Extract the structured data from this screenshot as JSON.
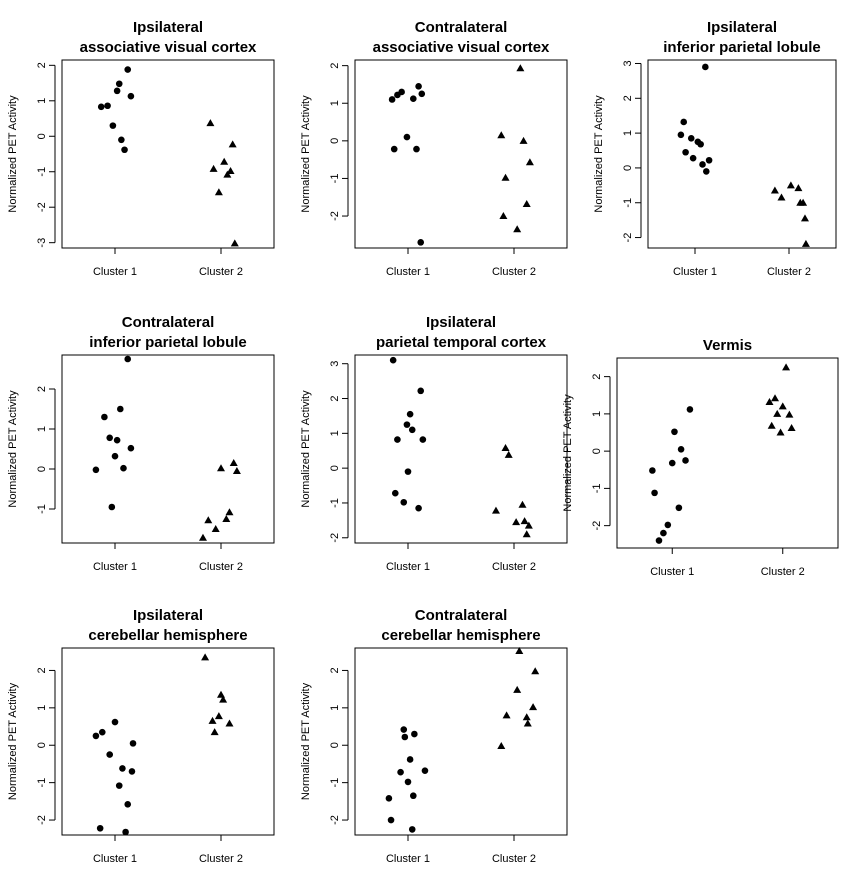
{
  "chart_data": [
    {
      "type": "scatter",
      "title": [
        "Ipsilateral",
        "associative visual cortex"
      ],
      "ylabel": "Normalized PET Activity",
      "categories": [
        "Cluster 1",
        "Cluster 2"
      ],
      "ylim": [
        -3.15,
        2.15
      ],
      "yticks": [
        -3,
        -2,
        -1,
        0,
        1,
        2
      ],
      "series": [
        {
          "name": "Cluster 1",
          "marker": "circle",
          "x": [
            0.87,
            0.93,
            0.98,
            1.02,
            1.04,
            1.06,
            1.09,
            1.12,
            1.15
          ],
          "y": [
            0.83,
            0.86,
            0.3,
            1.28,
            1.48,
            -0.1,
            -0.38,
            1.88,
            1.13
          ]
        },
        {
          "name": "Cluster 2",
          "marker": "triangle",
          "x": [
            1.9,
            1.93,
            1.98,
            2.03,
            2.06,
            2.09,
            2.11,
            2.13
          ],
          "y": [
            0.37,
            -0.92,
            -1.58,
            -0.72,
            -1.08,
            -0.98,
            -0.23,
            -3.02
          ]
        }
      ]
    },
    {
      "type": "scatter",
      "title": [
        "Contralateral",
        "associative visual cortex"
      ],
      "ylabel": "Normalized PET Activity",
      "categories": [
        "Cluster 1",
        "Cluster 2"
      ],
      "ylim": [
        -2.85,
        2.15
      ],
      "yticks": [
        -2,
        -1,
        0,
        1,
        2
      ],
      "series": [
        {
          "name": "Cluster 1",
          "marker": "circle",
          "x": [
            0.85,
            0.87,
            0.9,
            0.94,
            0.99,
            1.05,
            1.08,
            1.1,
            1.13
          ],
          "y": [
            1.1,
            -0.22,
            1.22,
            1.3,
            0.1,
            1.12,
            -0.22,
            1.45,
            1.25
          ]
        },
        {
          "name": "Cluster 2",
          "marker": "triangle",
          "x": [
            1.88,
            1.9,
            1.92,
            2.03,
            2.09,
            2.12,
            2.15
          ],
          "y": [
            0.15,
            -2.0,
            -0.98,
            -2.35,
            0.0,
            -1.68,
            -0.57
          ]
        },
        {
          "name": "Cluster 1",
          "marker": "circle",
          "x": [
            1.12
          ],
          "y": [
            -2.7
          ]
        },
        {
          "name": "Cluster 2",
          "marker": "triangle",
          "x": [
            2.06
          ],
          "y": [
            1.93
          ]
        }
      ]
    },
    {
      "type": "scatter",
      "title": [
        "Ipsilateral",
        "inferior parietal lobule"
      ],
      "ylabel": "Normalized PET Activity",
      "categories": [
        "Cluster 1",
        "Cluster 2"
      ],
      "ylim": [
        -2.3,
        3.1
      ],
      "yticks": [
        -2,
        -1,
        0,
        1,
        2,
        3
      ],
      "series": [
        {
          "name": "Cluster 1",
          "marker": "circle",
          "x": [
            0.85,
            0.88,
            0.9,
            0.96,
            0.98,
            1.03,
            1.06,
            1.08,
            1.11,
            1.12,
            1.15
          ],
          "y": [
            0.95,
            1.32,
            0.45,
            0.85,
            0.28,
            0.75,
            0.68,
            0.1,
            2.9,
            -0.1,
            0.22
          ]
        },
        {
          "name": "Cluster 2",
          "marker": "triangle",
          "x": [
            1.85,
            1.92,
            2.02,
            2.1,
            2.12,
            2.15,
            2.17,
            2.18
          ],
          "y": [
            -0.65,
            -0.85,
            -0.5,
            -0.58,
            -1.0,
            -1.0,
            -1.45,
            -2.18
          ]
        }
      ]
    },
    {
      "type": "scatter",
      "title": [
        "Contralateral",
        "inferior parietal lobule"
      ],
      "ylabel": "Normalized PET Activity",
      "categories": [
        "Cluster 1",
        "Cluster 2"
      ],
      "ylim": [
        -1.85,
        2.85
      ],
      "yticks": [
        -1,
        0,
        1,
        2
      ],
      "series": [
        {
          "name": "Cluster 1",
          "marker": "circle",
          "x": [
            0.82,
            0.9,
            0.95,
            0.97,
            1.0,
            1.02,
            1.05,
            1.08,
            1.12,
            1.15
          ],
          "y": [
            -0.02,
            1.3,
            0.78,
            -0.95,
            0.32,
            0.72,
            1.5,
            0.02,
            2.75,
            0.52
          ]
        },
        {
          "name": "Cluster 2",
          "marker": "triangle",
          "x": [
            1.83,
            1.88,
            1.95,
            2.0,
            2.05,
            2.08,
            2.12,
            2.15
          ],
          "y": [
            -1.72,
            -1.28,
            -1.5,
            0.02,
            -1.25,
            -1.08,
            0.15,
            -0.05
          ]
        }
      ]
    },
    {
      "type": "scatter",
      "title": [
        "Ipsilateral",
        "parietal temporal cortex"
      ],
      "ylabel": "Normalized PET Activity",
      "categories": [
        "Cluster 1",
        "Cluster 2"
      ],
      "ylim": [
        -2.15,
        3.25
      ],
      "yticks": [
        -2,
        -1,
        0,
        1,
        2,
        3
      ],
      "series": [
        {
          "name": "Cluster 1",
          "marker": "circle",
          "x": [
            0.86,
            0.88,
            0.9,
            0.96,
            0.99,
            1.0,
            1.02,
            1.04,
            1.1,
            1.12
          ],
          "y": [
            3.1,
            -0.72,
            0.82,
            -0.98,
            1.25,
            -0.1,
            1.55,
            1.1,
            -1.15,
            2.22
          ]
        },
        {
          "name": "Cluster 1",
          "marker": "circle",
          "x": [
            1.14
          ],
          "y": [
            0.82
          ]
        },
        {
          "name": "Cluster 2",
          "marker": "triangle",
          "x": [
            1.83,
            1.92,
            1.95,
            2.02,
            2.08,
            2.1,
            2.12
          ],
          "y": [
            -1.22,
            0.58,
            0.38,
            -1.55,
            -1.05,
            -1.52,
            -1.9
          ]
        },
        {
          "name": "Cluster 2",
          "marker": "triangle",
          "x": [
            2.14
          ],
          "y": [
            -1.65
          ]
        }
      ]
    },
    {
      "type": "scatter",
      "title": [
        "Vermis"
      ],
      "ylabel": "Normalized PET Activity",
      "categories": [
        "Cluster 1",
        "Cluster 2"
      ],
      "ylim": [
        -2.6,
        2.5
      ],
      "yticks": [
        -2,
        -1,
        0,
        1,
        2
      ],
      "series": [
        {
          "name": "Cluster 1",
          "marker": "circle",
          "x": [
            0.82,
            0.84,
            0.88,
            0.92,
            0.96,
            1.0,
            1.02,
            1.06,
            1.08,
            1.12,
            1.16
          ],
          "y": [
            -0.52,
            -1.12,
            -2.4,
            -2.2,
            -1.98,
            -0.32,
            0.52,
            -1.52,
            0.05,
            -0.25,
            1.12
          ]
        },
        {
          "name": "Cluster 2",
          "marker": "triangle",
          "x": [
            1.88,
            1.9,
            1.93,
            1.95,
            1.98,
            2.0,
            2.03,
            2.06,
            2.08
          ],
          "y": [
            1.32,
            0.68,
            1.42,
            1.0,
            0.5,
            1.2,
            2.25,
            0.98,
            0.62
          ]
        }
      ]
    },
    {
      "type": "scatter",
      "title": [
        "Ipsilateral",
        "cerebellar hemisphere"
      ],
      "ylabel": "Normalized PET Activity",
      "categories": [
        "Cluster 1",
        "Cluster 2"
      ],
      "ylim": [
        -2.4,
        2.6
      ],
      "yticks": [
        -2,
        -1,
        0,
        1,
        2
      ],
      "series": [
        {
          "name": "Cluster 1",
          "marker": "circle",
          "x": [
            0.82,
            0.86,
            0.88,
            0.95,
            1.0,
            1.04,
            1.07,
            1.1,
            1.12,
            1.16,
            1.17
          ],
          "y": [
            0.25,
            -2.22,
            0.35,
            -0.25,
            0.62,
            -1.08,
            -0.62,
            -2.32,
            -1.58,
            -0.7,
            0.05
          ]
        },
        {
          "name": "Cluster 2",
          "marker": "triangle",
          "x": [
            1.85,
            1.92,
            1.94,
            1.98,
            2.0,
            2.02,
            2.08
          ],
          "y": [
            2.35,
            0.65,
            0.35,
            0.78,
            1.35,
            1.22,
            0.58
          ]
        }
      ]
    },
    {
      "type": "scatter",
      "title": [
        "Contralateral",
        "cerebellar hemisphere"
      ],
      "ylabel": "Normalized PET Activity",
      "categories": [
        "Cluster 1",
        "Cluster 2"
      ],
      "ylim": [
        -2.4,
        2.6
      ],
      "yticks": [
        -2,
        -1,
        0,
        1,
        2
      ],
      "series": [
        {
          "name": "Cluster 1",
          "marker": "circle",
          "x": [
            0.82,
            0.84,
            0.93,
            0.96,
            0.97,
            1.0,
            1.02,
            1.04,
            1.05,
            1.06,
            1.16
          ],
          "y": [
            -1.42,
            -2.0,
            -0.72,
            0.42,
            0.22,
            -0.98,
            -0.38,
            -2.25,
            -1.35,
            0.3,
            -0.68
          ]
        },
        {
          "name": "Cluster 2",
          "marker": "triangle",
          "x": [
            1.88,
            1.93,
            2.03,
            2.05,
            2.12,
            2.13,
            2.18,
            2.2
          ],
          "y": [
            -0.02,
            0.8,
            1.48,
            2.52,
            0.75,
            0.58,
            1.02,
            1.98
          ]
        }
      ]
    }
  ]
}
